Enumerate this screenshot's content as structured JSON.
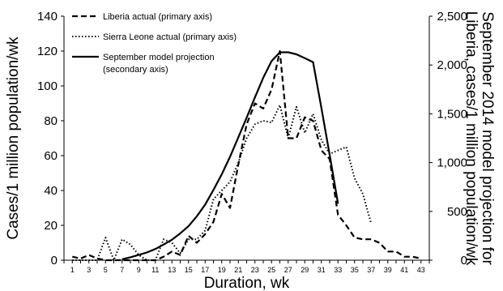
{
  "chart_data": {
    "type": "line",
    "x": [
      1,
      2,
      3,
      4,
      5,
      6,
      7,
      8,
      9,
      10,
      11,
      12,
      13,
      14,
      15,
      16,
      17,
      18,
      19,
      20,
      21,
      22,
      23,
      24,
      25,
      26,
      27,
      28,
      29,
      30,
      31,
      32,
      33,
      34,
      35,
      36,
      37,
      38,
      39,
      40,
      41,
      42,
      43
    ],
    "x_ticks": [
      1,
      3,
      5,
      7,
      9,
      11,
      13,
      15,
      17,
      19,
      21,
      23,
      25,
      27,
      29,
      31,
      33,
      35,
      37,
      39,
      41,
      43
    ],
    "xlabel": "Duration, wk",
    "ylabel": "Cases/1 million population/wk",
    "ylabel2_lines": [
      "September 2014 model projection for",
      "Liberia, cases/1 million population/wk"
    ],
    "ylim": [
      0,
      140
    ],
    "ylim2": [
      0,
      2500
    ],
    "y_ticks": [
      0,
      20,
      40,
      60,
      80,
      100,
      120,
      140
    ],
    "y2_ticks": [
      0,
      500,
      1000,
      1500,
      2000,
      2500
    ],
    "y2_tick_labels": [
      "0",
      "500",
      "1,000",
      "1,500",
      "2,000",
      "2,500"
    ],
    "series": [
      {
        "name": "Liberia actual (primary axis)",
        "axis": "primary",
        "style": "dashed",
        "x": [
          1,
          2,
          3,
          4,
          5,
          6,
          7,
          8,
          9,
          10,
          11,
          12,
          13,
          14,
          15,
          16,
          17,
          18,
          19,
          20,
          21,
          22,
          23,
          24,
          25,
          26,
          27,
          28,
          29,
          30,
          31,
          32,
          33,
          34,
          35,
          36,
          37,
          38,
          39,
          40,
          41,
          42,
          43
        ],
        "values": [
          2,
          1,
          3,
          1,
          0,
          0,
          0,
          0,
          0,
          0,
          0,
          2,
          5,
          3,
          14,
          10,
          15,
          22,
          38,
          30,
          55,
          78,
          90,
          87,
          98,
          120,
          70,
          70,
          82,
          80,
          63,
          58,
          26,
          20,
          13,
          12,
          12,
          10,
          5,
          5,
          2,
          2,
          1
        ]
      },
      {
        "name": "Sierra Leone actual (primary axis)",
        "axis": "primary",
        "style": "dotted",
        "x": [
          1,
          2,
          3,
          4,
          5,
          6,
          7,
          8,
          9,
          10,
          11,
          12,
          13,
          14,
          15,
          16,
          17,
          18,
          19,
          20,
          21,
          22,
          23,
          24,
          25,
          26,
          27,
          28,
          29,
          30,
          31,
          32,
          33,
          34,
          35,
          36,
          37
        ],
        "values": [
          0,
          0,
          0,
          0,
          13,
          0,
          12,
          9,
          3,
          0,
          0,
          12,
          10,
          4,
          12,
          12,
          17,
          35,
          40,
          45,
          56,
          70,
          78,
          80,
          79,
          89,
          70,
          88,
          73,
          84,
          69,
          61,
          63,
          65,
          47,
          38,
          21
        ]
      },
      {
        "name": "September model projection (secondary axis)",
        "axis": "secondary",
        "style": "solid",
        "x": [
          7,
          8,
          9,
          10,
          11,
          12,
          13,
          14,
          15,
          16,
          17,
          18,
          19,
          20,
          21,
          22,
          23,
          24,
          25,
          26,
          27,
          28,
          29,
          30,
          31,
          32,
          33
        ],
        "values": [
          10,
          30,
          55,
          80,
          115,
          160,
          210,
          275,
          350,
          450,
          570,
          720,
          880,
          1060,
          1260,
          1460,
          1670,
          1870,
          2040,
          2130,
          2130,
          2110,
          2070,
          2030,
          1560,
          1080,
          580
        ]
      }
    ]
  }
}
